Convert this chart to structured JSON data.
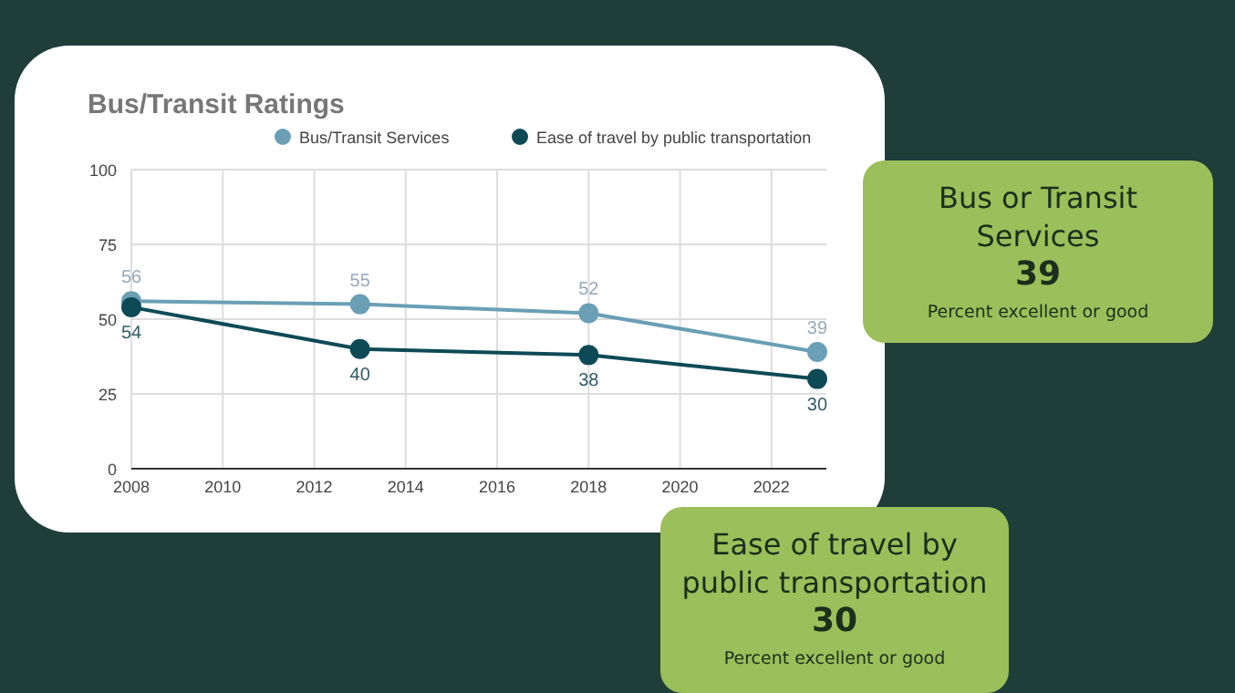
{
  "chart_data": [
    {
      "type": "line",
      "title": "Bus/Transit Ratings",
      "x": [
        2008,
        2013,
        2018,
        2023
      ],
      "series": [
        {
          "name": "Bus/Transit Services",
          "color": "#6a9fb5",
          "values": [
            56,
            55,
            52,
            39
          ]
        },
        {
          "name": "Ease of travel by public transportation",
          "color": "#0d4a56",
          "values": [
            54,
            40,
            38,
            30
          ]
        }
      ],
      "xlim": [
        2008,
        2023.2
      ],
      "xticks": [
        2008,
        2010,
        2012,
        2014,
        2016,
        2018,
        2020,
        2022
      ],
      "ylim": [
        0,
        100
      ],
      "yticks": [
        0,
        25,
        50,
        75,
        100
      ],
      "grid": true,
      "legend": "top",
      "marker": "circle",
      "data_labels": true
    },
    {
      "type": "other",
      "title": "Bus or Transit Services",
      "annotations": [
        "39",
        "Percent excellent or good"
      ]
    },
    {
      "type": "other",
      "title": "Ease of travel by public transportation",
      "annotations": [
        "30",
        "Percent excellent or good"
      ]
    }
  ]
}
